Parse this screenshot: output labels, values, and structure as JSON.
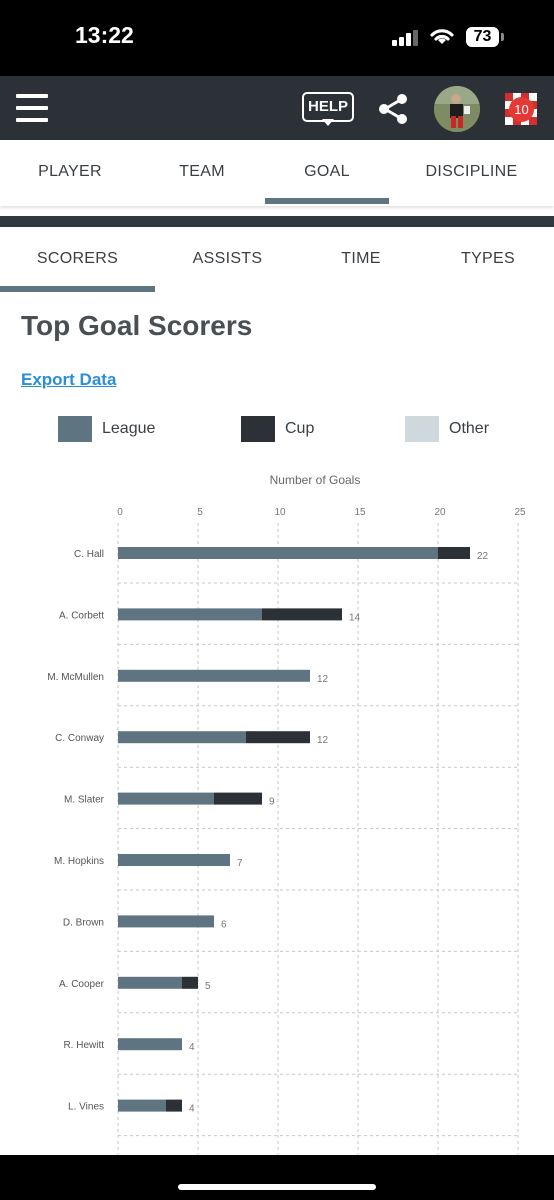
{
  "status_bar": {
    "time": "13:22",
    "battery": "73"
  },
  "app_bar": {
    "help_label": "HELP",
    "notification_count": "10"
  },
  "main_tabs": [
    {
      "label": "PLAYER"
    },
    {
      "label": "TEAM"
    },
    {
      "label": "GOAL",
      "active": true
    },
    {
      "label": "DISCIPLINE"
    }
  ],
  "sub_tabs": [
    {
      "label": "SCORERS",
      "active": true
    },
    {
      "label": "ASSISTS"
    },
    {
      "label": "TIME"
    },
    {
      "label": "TYPES"
    }
  ],
  "page": {
    "title": "Top Goal Scorers",
    "export_label": "Export Data"
  },
  "legend": [
    {
      "label": "League",
      "color": "#5e7481"
    },
    {
      "label": "Cup",
      "color": "#2b3136"
    },
    {
      "label": "Other",
      "color": "#cfd8dc"
    }
  ],
  "chart_data": {
    "type": "bar",
    "orientation": "horizontal",
    "stacked": true,
    "xlabel": "Number of Goals",
    "xlim": [
      0,
      25
    ],
    "x_ticks": [
      "0",
      "5",
      "10",
      "15",
      "20",
      "25"
    ],
    "grid": true,
    "categories": [
      "C. Hall",
      "A. Corbett",
      "M. McMullen",
      "C. Conway",
      "M. Slater",
      "M. Hopkins",
      "D. Brown",
      "A. Cooper",
      "R. Hewitt",
      "L. Vines"
    ],
    "series": [
      {
        "name": "League",
        "color": "#5e7481",
        "values": [
          20,
          9,
          12,
          8,
          6,
          7,
          6,
          4,
          4,
          3
        ]
      },
      {
        "name": "Cup",
        "color": "#2b3136",
        "values": [
          2,
          5,
          0,
          4,
          3,
          0,
          0,
          1,
          0,
          1
        ]
      },
      {
        "name": "Other",
        "color": "#cfd8dc",
        "values": [
          0,
          0,
          0,
          0,
          0,
          0,
          0,
          0,
          0,
          0
        ]
      }
    ],
    "totals": [
      "22",
      "14",
      "12",
      "12",
      "9",
      "7",
      "6",
      "5",
      "4",
      "4"
    ]
  }
}
